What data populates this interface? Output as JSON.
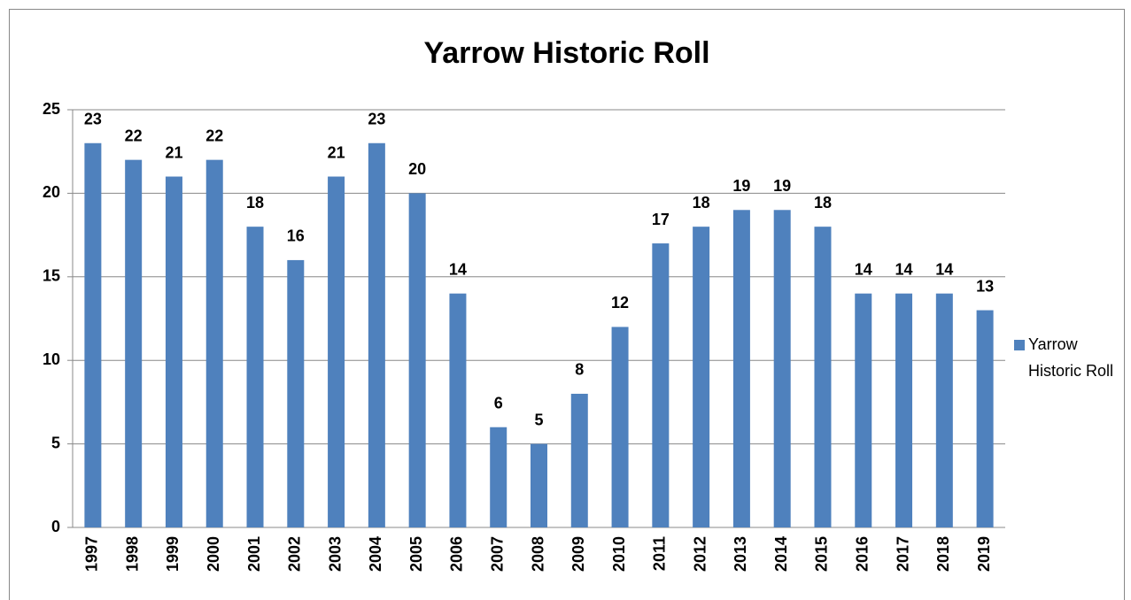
{
  "chart_data": {
    "type": "bar",
    "title": "Yarrow Historic Roll",
    "categories": [
      "1997",
      "1998",
      "1999",
      "2000",
      "2001",
      "2002",
      "2003",
      "2004",
      "2005",
      "2006",
      "2007",
      "2008",
      "2009",
      "2010",
      "2011",
      "2012",
      "2013",
      "2014",
      "2015",
      "2016",
      "2017",
      "2018",
      "2019"
    ],
    "series": [
      {
        "name": "Yarrow Historic Roll",
        "color": "#4f81bd",
        "values": [
          23,
          22,
          21,
          22,
          18,
          16,
          21,
          23,
          20,
          14,
          6,
          5,
          8,
          12,
          17,
          18,
          19,
          19,
          18,
          14,
          14,
          14,
          13
        ]
      }
    ],
    "ylim": [
      0,
      25
    ],
    "yticks": [
      0,
      5,
      10,
      15,
      20,
      25
    ],
    "grid": true,
    "legend": "right"
  }
}
